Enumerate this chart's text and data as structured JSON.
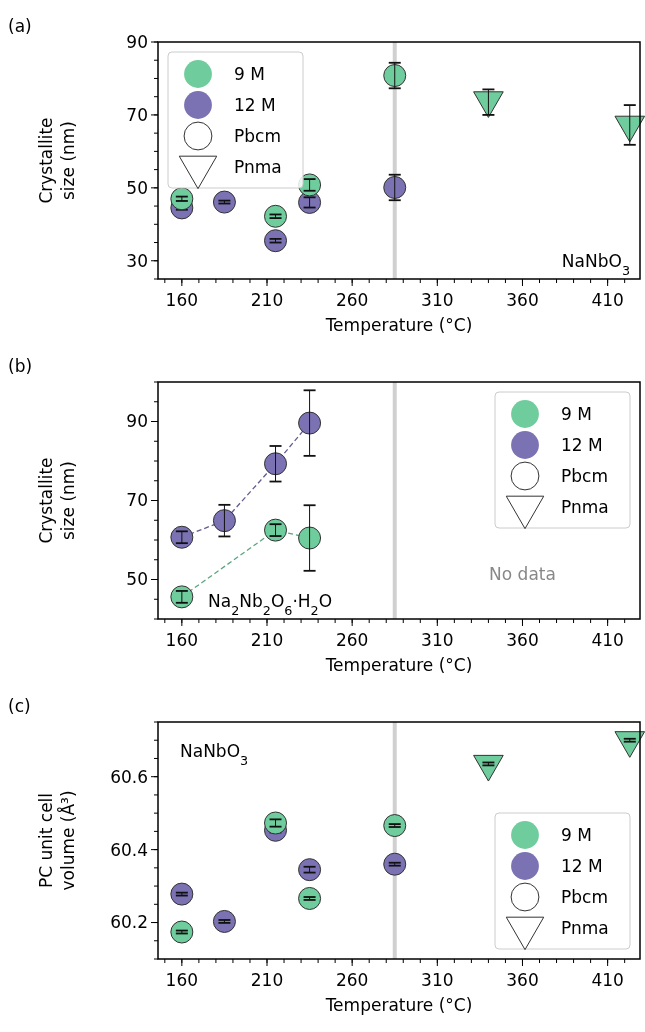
{
  "chart_data": [
    {
      "type": "scatter",
      "title": "(a)",
      "xlabel": "Temperature (°C)",
      "ylabel": "Crystallite\nsize (nm)",
      "xlim": [
        146,
        429
      ],
      "xticks": [
        160,
        210,
        260,
        310,
        360,
        410
      ],
      "ylim": [
        25,
        90
      ],
      "yticks": [
        30,
        50,
        70,
        90
      ],
      "legend": "top left",
      "ref_lines": [
        {
          "axis": "x",
          "value": 285,
          "color": "#d0d0d0"
        }
      ],
      "annotations": [
        "NaNbO$_{3}$"
      ],
      "series": [
        {
          "name": "9 M",
          "color": "#6fcc9d",
          "marker": "circle",
          "x": [
            160,
            215,
            235,
            285
          ],
          "values": [
            47,
            42.2,
            50.8,
            80.8
          ],
          "errors": [
            0.6,
            0.5,
            1.6,
            3.5
          ]
        },
        {
          "name": "12 M",
          "color": "#7b72b3",
          "marker": "circle",
          "x": [
            160,
            185,
            215,
            235,
            285
          ],
          "values": [
            44.5,
            46.1,
            35.5,
            46,
            50.1
          ],
          "errors": [
            0.5,
            0.4,
            0.5,
            1.4,
            3.5
          ]
        },
        {
          "name": "Pbcm",
          "marker": "circle"
        },
        {
          "color": "#6fcc9d",
          "marker": "triangle",
          "x": [
            340,
            423
          ],
          "values": [
            74,
            67.3
          ],
          "errors": [
            [
              70,
              77
            ],
            [
              61.8,
              72.7
            ]
          ]
        },
        {
          "name": "Pnma",
          "marker": "triangle"
        }
      ]
    },
    {
      "type": "scatter",
      "title": "(b)",
      "xlabel": "Temperature (°C)",
      "ylabel": "Crystallite\nsize (nm)",
      "xlim": [
        146,
        429
      ],
      "xticks": [
        160,
        210,
        260,
        310,
        360,
        410
      ],
      "ylim": [
        40,
        100
      ],
      "yticks": [
        50,
        70,
        90
      ],
      "legend": "top right",
      "ref_lines": [
        {
          "axis": "x",
          "value": 285,
          "color": "#d0d0d0"
        }
      ],
      "annotations": [
        "Na$_{2}$Nb$_{2}$O$_{6}$·H$_{2}$O",
        "No data"
      ],
      "series": [
        {
          "name": "9 M",
          "type": "line",
          "line_style": "dashed",
          "color": "#6fcc9d",
          "marker": "circle",
          "x": [
            160,
            215,
            235
          ],
          "values": [
            45.6,
            62.5,
            60.5
          ],
          "errors": [
            1.5,
            1.5,
            8.3
          ]
        },
        {
          "name": "12 M",
          "type": "line",
          "line_style": "dashed",
          "color": "#7b72b3",
          "marker": "circle",
          "x": [
            160,
            185,
            215,
            235
          ],
          "values": [
            60.7,
            64.9,
            79.3,
            89.6
          ],
          "errors": [
            1.5,
            4,
            4.5,
            8.3
          ]
        },
        {
          "name": "Pbcm",
          "marker": "circle"
        },
        {
          "name": "Pnma",
          "marker": "triangle"
        }
      ]
    },
    {
      "type": "scatter",
      "title": "(c)",
      "xlabel": "Temperature (°C)",
      "ylabel": "PC unit cell\nvolume (Å³)",
      "xlim": [
        146,
        429
      ],
      "xticks": [
        160,
        210,
        260,
        310,
        360,
        410
      ],
      "ylim": [
        60.1,
        60.75
      ],
      "yticks": [
        60.2,
        60.4,
        60.6
      ],
      "legend": "bottom right",
      "ref_lines": [
        {
          "axis": "x",
          "value": 285,
          "color": "#d0d0d0"
        }
      ],
      "annotations": [
        "NaNbO$_{3}$"
      ],
      "series": [
        {
          "name": "9 M",
          "color": "#6fcc9d",
          "marker": "circle",
          "x": [
            160,
            215,
            235,
            285
          ],
          "values": [
            60.174,
            60.473,
            60.266,
            60.466
          ],
          "errors": [
            0.004,
            0.01,
            0.004,
            0.004
          ]
        },
        {
          "name": "12 M",
          "color": "#7b72b3",
          "marker": "circle",
          "x": [
            160,
            185,
            215,
            235,
            285
          ],
          "values": [
            60.278,
            60.203,
            60.453,
            60.345,
            60.36
          ],
          "errors": [
            0.004,
            0.004,
            0.006,
            0.008,
            0.004
          ]
        },
        {
          "name": "Pbcm",
          "marker": "circle"
        },
        {
          "color": "#6fcc9d",
          "marker": "triangle",
          "x": [
            340,
            423
          ],
          "values": [
            60.635,
            60.7
          ],
          "errors": [
            0.004,
            0.004
          ]
        },
        {
          "name": "Pnma",
          "marker": "triangle"
        }
      ]
    }
  ]
}
